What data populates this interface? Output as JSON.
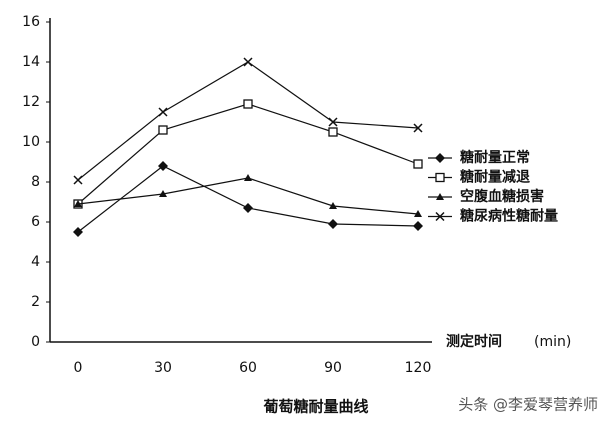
{
  "chart_data": {
    "type": "line",
    "title": "葡萄糖耐量曲线",
    "x_label": "测定时间",
    "x_unit": "(min)",
    "categories": [
      "0",
      "30",
      "60",
      "90",
      "120"
    ],
    "series": [
      {
        "name": "糖耐量正常",
        "color": "#111111",
        "marker": "diamond",
        "values": [
          5.5,
          8.8,
          6.7,
          5.9,
          5.8
        ]
      },
      {
        "name": "糖耐量减退",
        "color": "#111111",
        "marker": "square",
        "values": [
          6.9,
          10.6,
          11.9,
          10.5,
          8.9
        ]
      },
      {
        "name": "空腹血糖损害",
        "color": "#111111",
        "marker": "triangle",
        "values": [
          6.9,
          7.4,
          8.2,
          6.8,
          6.4
        ]
      },
      {
        "name": "糖尿病性糖耐量",
        "color": "#111111",
        "marker": "x",
        "values": [
          8.1,
          11.5,
          14.0,
          11.0,
          10.7
        ]
      }
    ],
    "ylim": [
      0,
      16
    ],
    "yticks": [
      0,
      2,
      4,
      6,
      8,
      10,
      12,
      14,
      16
    ],
    "watermark": "头条 @李爱琴营养师"
  }
}
